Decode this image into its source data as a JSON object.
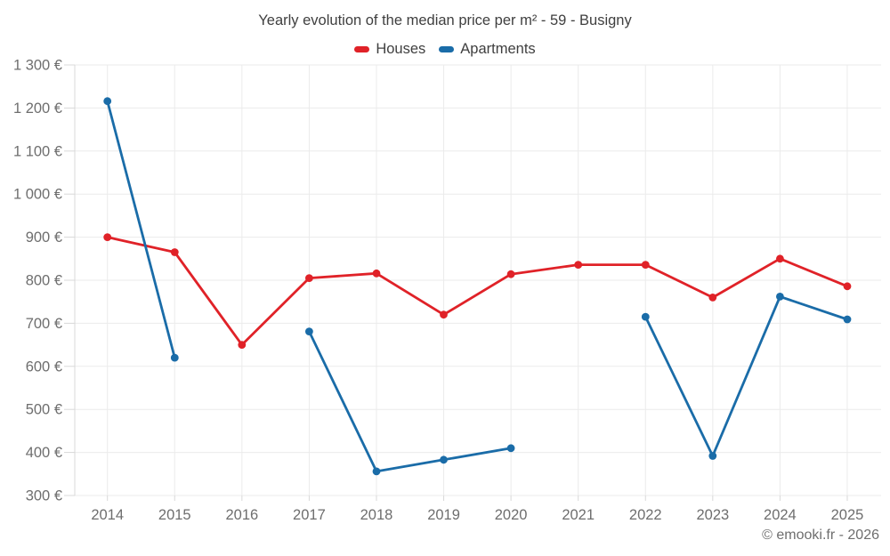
{
  "chart_data": {
    "type": "line",
    "title": "Yearly evolution of the median price per m² - 59 - Busigny",
    "categories": [
      "2014",
      "2015",
      "2016",
      "2017",
      "2018",
      "2019",
      "2020",
      "2021",
      "2022",
      "2023",
      "2024",
      "2025"
    ],
    "series": [
      {
        "name": "Houses",
        "color": "#e02228",
        "values": [
          900,
          865,
          650,
          805,
          816,
          720,
          814,
          836,
          836,
          760,
          850,
          786
        ]
      },
      {
        "name": "Apartments",
        "color": "#1a6ca8",
        "values": [
          1216,
          620,
          null,
          681,
          356,
          383,
          410,
          null,
          715,
          392,
          762,
          709
        ]
      }
    ],
    "xlabel": "",
    "ylabel": "",
    "ylim": [
      300,
      1300
    ],
    "ytick_step": 100,
    "ytick_suffix": " €",
    "grid": true,
    "legend_position": "top"
  },
  "footer": {
    "copyright": "© emooki.fr - 2026"
  }
}
